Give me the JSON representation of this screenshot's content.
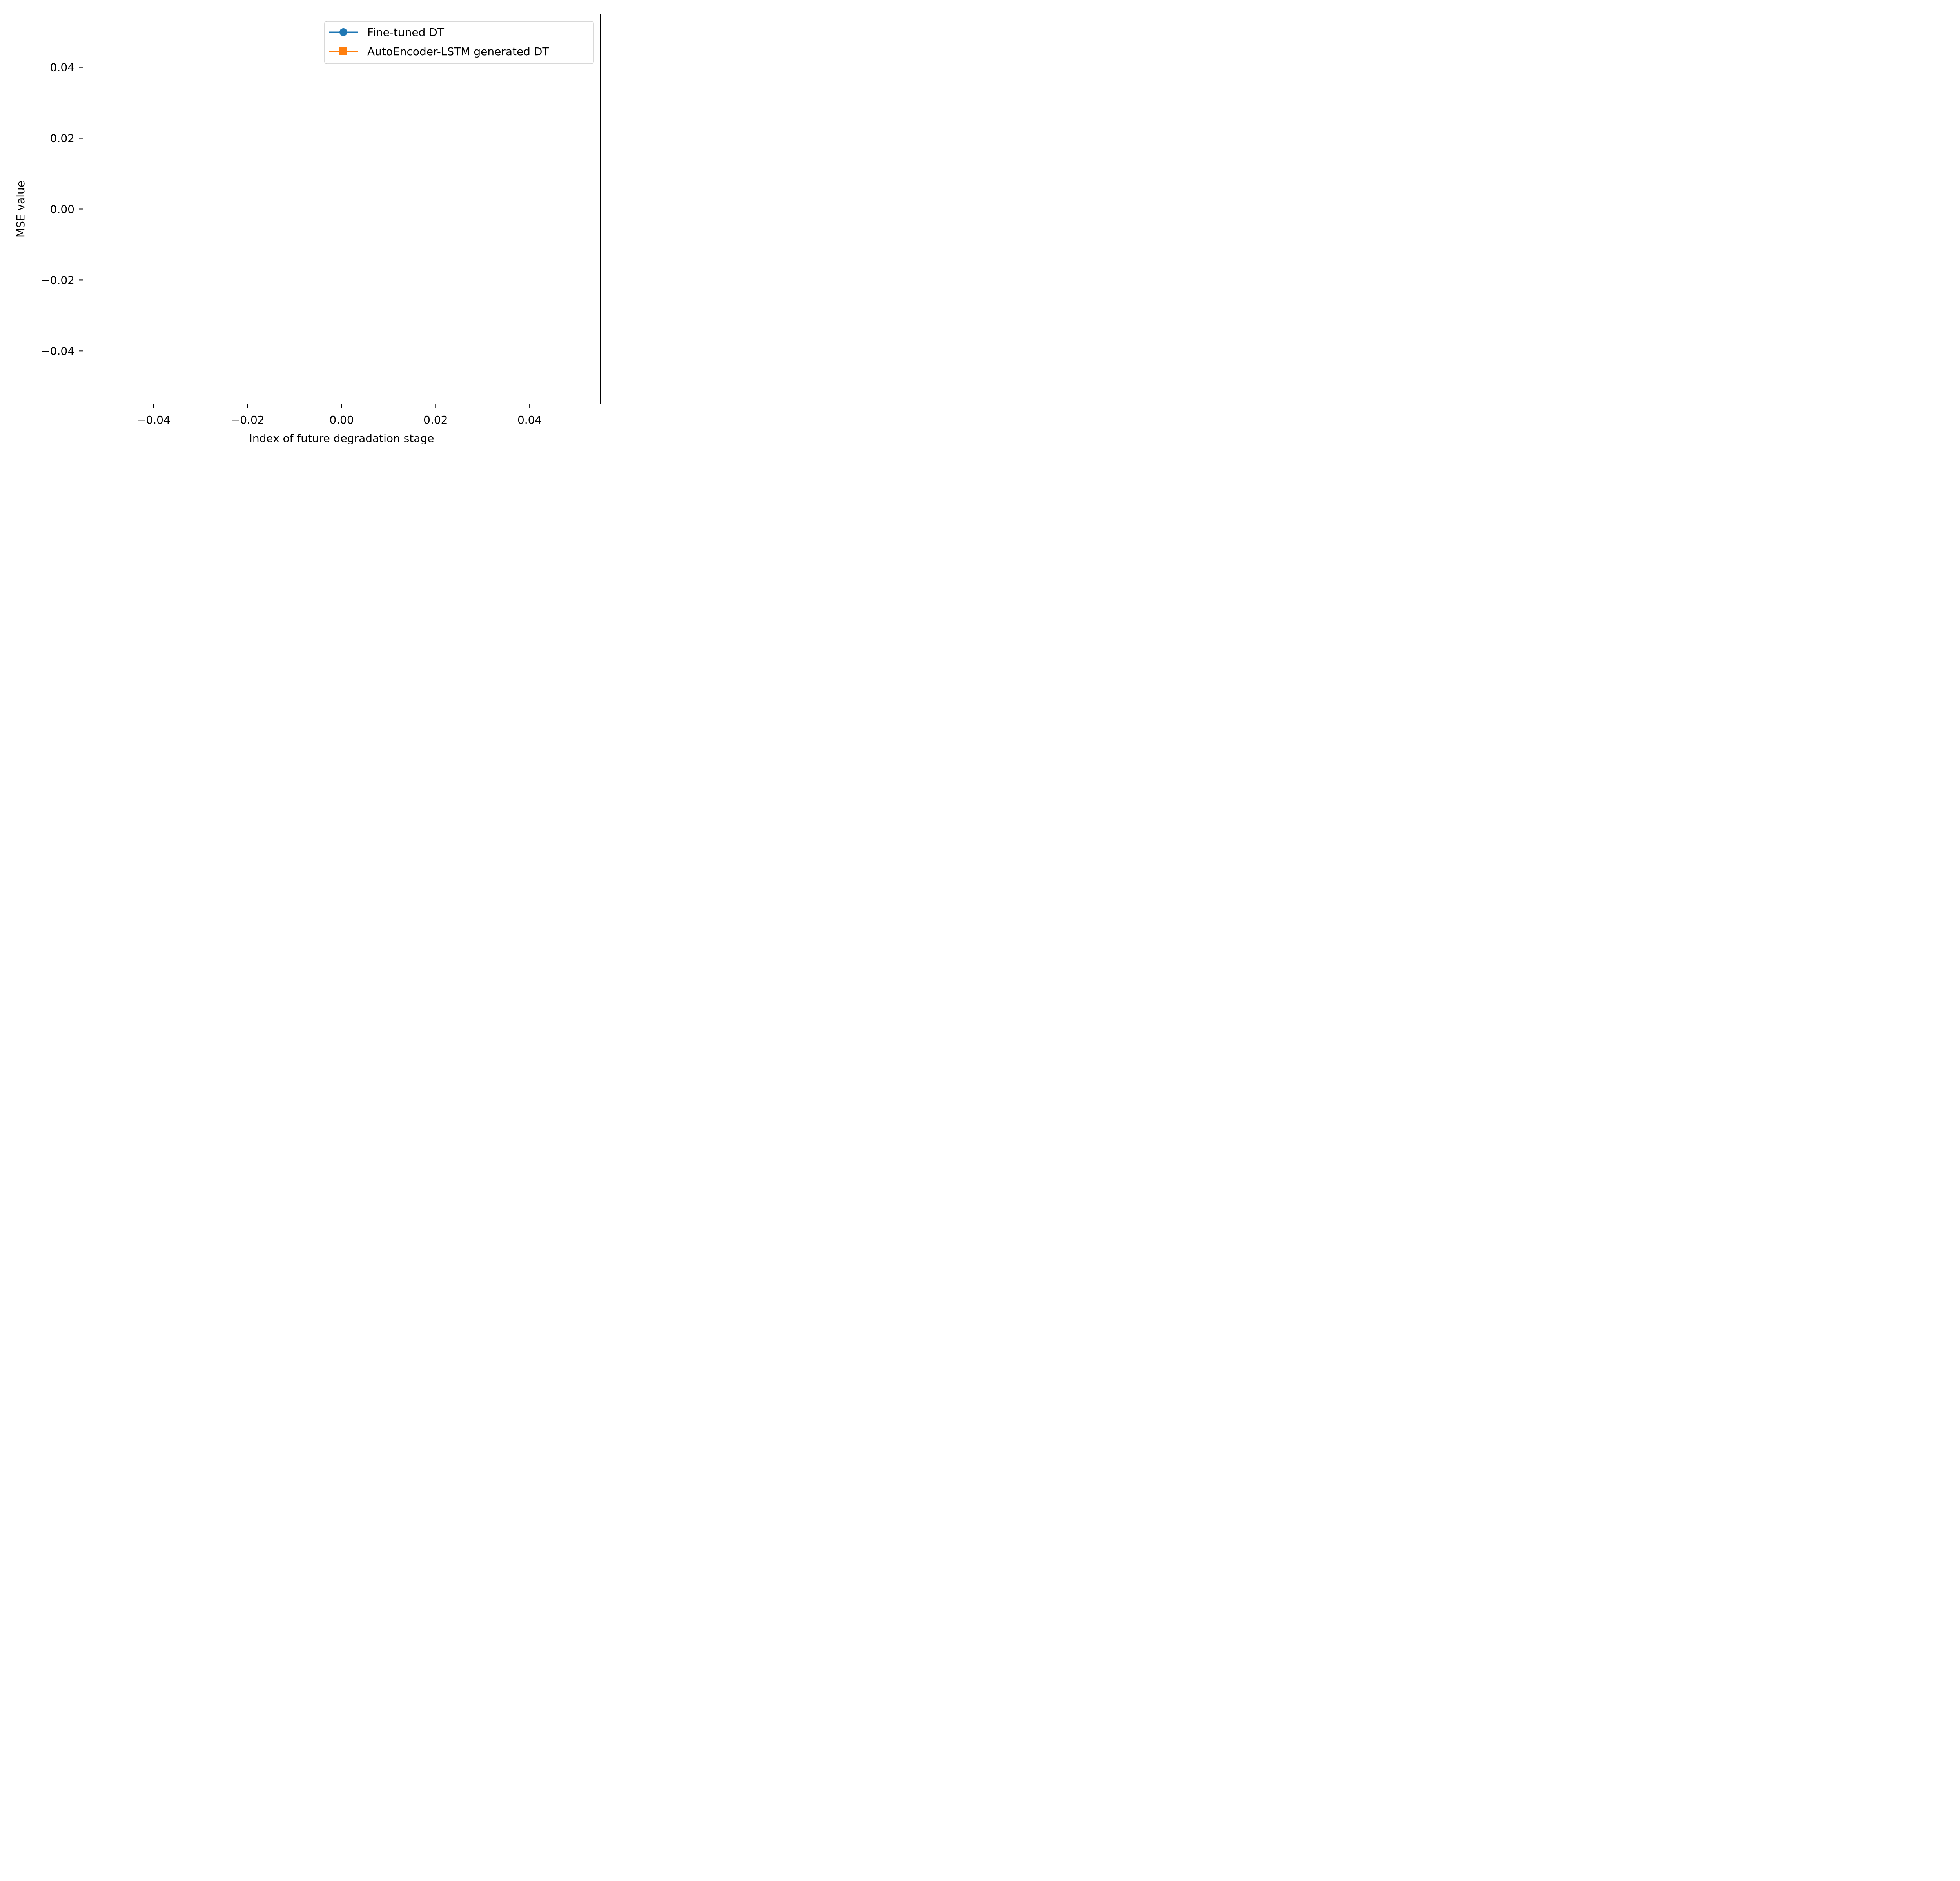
{
  "chart_data": {
    "type": "line",
    "title": "",
    "xlabel": "Index of future degradation stage",
    "ylabel": "MSE value",
    "xlim": [
      -0.055,
      0.055
    ],
    "ylim": [
      -0.055,
      0.055
    ],
    "x_ticks": [
      {
        "value": -0.04,
        "label": "−0.04"
      },
      {
        "value": -0.02,
        "label": "−0.02"
      },
      {
        "value": 0.0,
        "label": "0.00"
      },
      {
        "value": 0.02,
        "label": "0.02"
      },
      {
        "value": 0.04,
        "label": "0.04"
      }
    ],
    "y_ticks": [
      {
        "value": -0.04,
        "label": "−0.04"
      },
      {
        "value": -0.02,
        "label": "−0.02"
      },
      {
        "value": 0.0,
        "label": "0.00"
      },
      {
        "value": 0.02,
        "label": "0.02"
      },
      {
        "value": 0.04,
        "label": "0.04"
      }
    ],
    "grid": false,
    "legend_position": "top-right",
    "series": [
      {
        "name": "Fine-tuned DT",
        "marker": "circle",
        "color": "#1f77b4",
        "x": [],
        "y": []
      },
      {
        "name": "AutoEncoder-LSTM generated DT",
        "marker": "square",
        "color": "#ff7f0e",
        "x": [],
        "y": []
      }
    ]
  }
}
